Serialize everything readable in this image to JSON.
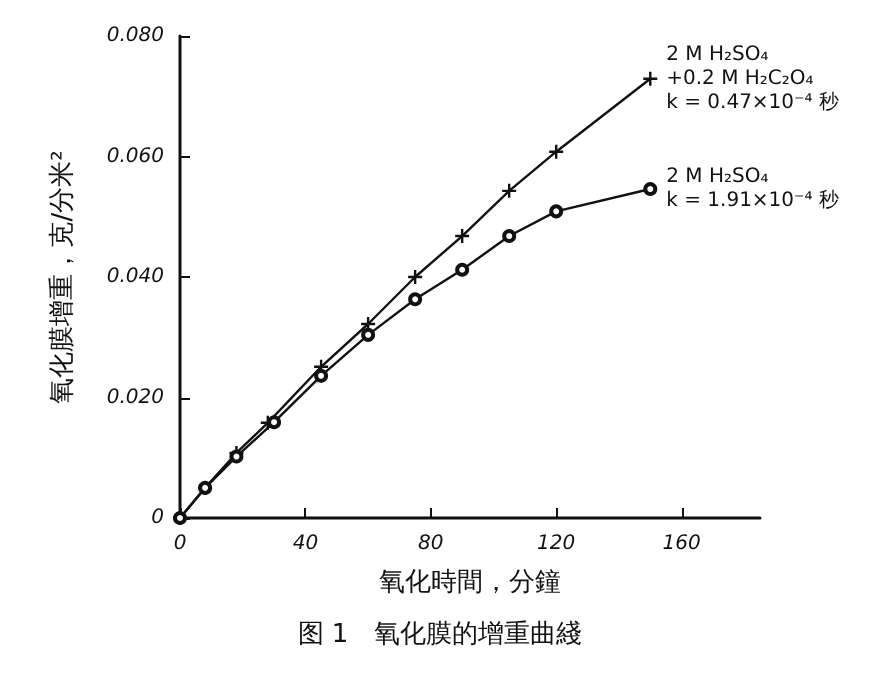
{
  "chart_data": {
    "type": "line",
    "title": "图 1　氧化膜的增重曲綫",
    "xlabel": "氧化時間，分鐘",
    "ylabel": "氧化膜增重，克/分米²",
    "xlim": [
      0,
      185
    ],
    "xticks": [
      0,
      40,
      80,
      120,
      160
    ],
    "ylim": [
      0,
      0.08
    ],
    "yticks": [
      0,
      {
        "value": 0.02,
        "label": "0.020"
      },
      {
        "value": 0.04,
        "label": "0.040"
      },
      {
        "value": 0.06,
        "label": "0.060"
      },
      {
        "value": 0.08,
        "label": "0.080"
      }
    ],
    "grid": false,
    "legend": false,
    "line_style": "solid",
    "series": [
      {
        "name": "2 M H₂SO₄\n+0.2 M H₂C₂O₄\nk = 0.47×10⁻⁴ 秒",
        "color": "#111111",
        "marker": "cross",
        "x": [
          0,
          8,
          18,
          28,
          45,
          60,
          75,
          90,
          105,
          120,
          150
        ],
        "values": [
          0,
          0.005,
          0.0108,
          0.0158,
          0.0251,
          0.0322,
          0.04,
          0.0468,
          0.0543,
          0.0608,
          0.0729
        ]
      },
      {
        "name": "2 M H₂SO₄\nk = 1.91×10⁻⁴ 秒",
        "color": "#111111",
        "marker": "circle",
        "x": [
          0,
          8,
          18,
          30,
          45,
          60,
          75,
          90,
          105,
          120,
          150
        ],
        "values": [
          0,
          0.005,
          0.0102,
          0.0159,
          0.0236,
          0.0304,
          0.0363,
          0.0412,
          0.0468,
          0.0509,
          0.0546
        ]
      }
    ]
  }
}
